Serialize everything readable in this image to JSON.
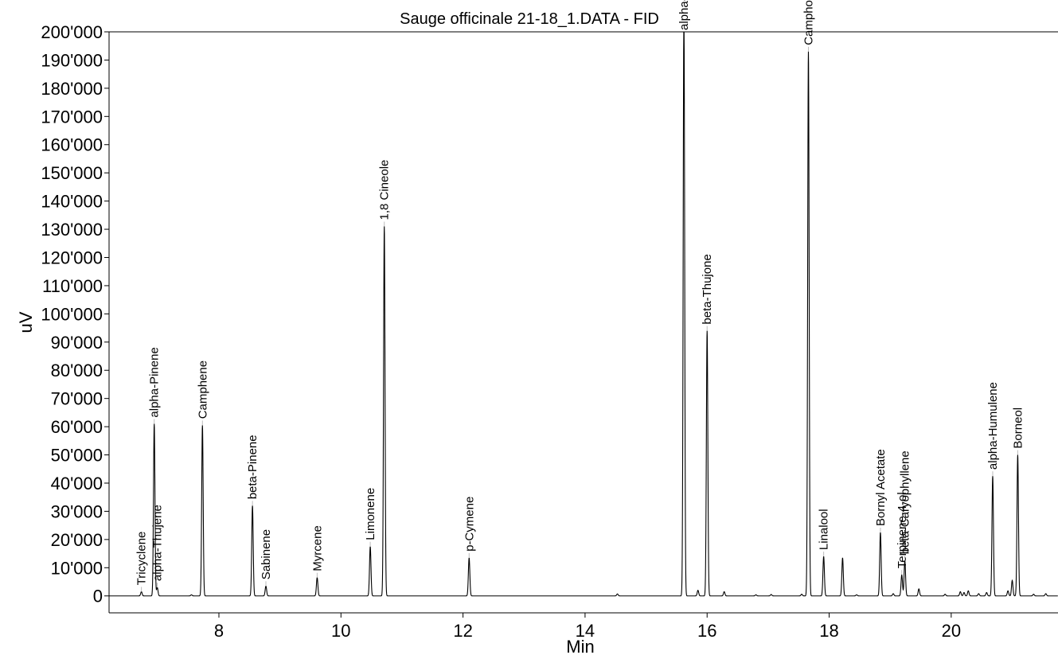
{
  "chart_data": {
    "type": "line",
    "title": "Sauge officinale 21-18_1.DATA - FID",
    "xlabel": "Min",
    "ylabel": "uV",
    "xlim": [
      6.2,
      21.75
    ],
    "ylim": [
      -6000,
      200000
    ],
    "x_ticks": [
      8,
      10,
      12,
      14,
      16,
      18,
      20
    ],
    "x_tick_labels": [
      "8",
      "10",
      "12",
      "14",
      "16",
      "18",
      "20"
    ],
    "y_ticks": [
      0,
      10000,
      20000,
      30000,
      40000,
      50000,
      60000,
      70000,
      80000,
      90000,
      100000,
      110000,
      120000,
      130000,
      140000,
      150000,
      160000,
      170000,
      180000,
      190000,
      200000
    ],
    "y_tick_labels": [
      "0",
      "10'000",
      "20'000",
      "30'000",
      "40'000",
      "50'000",
      "60'000",
      "70'000",
      "80'000",
      "90'000",
      "100'000",
      "110'000",
      "120'000",
      "130'000",
      "140'000",
      "150'000",
      "160'000",
      "170'000",
      "180'000",
      "190'000",
      "200'000"
    ],
    "grid": false,
    "trace_color": "#000000",
    "labeled_peaks": [
      {
        "name": "Tricyclene",
        "x": 6.73,
        "y": 1500
      },
      {
        "name": "alpha-Pinene",
        "x": 6.94,
        "y": 61000
      },
      {
        "name": "alpha-Thujene",
        "x": 6.99,
        "y": 3000
      },
      {
        "name": "Camphene",
        "x": 7.73,
        "y": 60500
      },
      {
        "name": "beta-Pinene",
        "x": 8.55,
        "y": 32000
      },
      {
        "name": "Sabinene",
        "x": 8.77,
        "y": 3500
      },
      {
        "name": "Myrcene",
        "x": 9.61,
        "y": 6500
      },
      {
        "name": "Limonene",
        "x": 10.48,
        "y": 17500
      },
      {
        "name": "1,8 Cineole",
        "x": 10.71,
        "y": 131000
      },
      {
        "name": "p-Cymene",
        "x": 12.1,
        "y": 13500
      },
      {
        "name": "alpha-Thujone",
        "x": 15.62,
        "y": 210000
      },
      {
        "name": "beta-Thujone",
        "x": 16.0,
        "y": 94000
      },
      {
        "name": "Camphor",
        "x": 17.66,
        "y": 193000
      },
      {
        "name": "Linalool",
        "x": 17.91,
        "y": 14000
      },
      {
        "name": "Bornyl Acetate",
        "x": 18.84,
        "y": 22500
      },
      {
        "name": "Terpinene-4-ol",
        "x": 19.19,
        "y": 7500
      },
      {
        "name": "beta-Caryophyllene",
        "x": 19.24,
        "y": 12500
      },
      {
        "name": "alpha-Humulene",
        "x": 20.68,
        "y": 42500
      },
      {
        "name": "Borneol",
        "x": 21.09,
        "y": 50000
      }
    ],
    "minor_peaks": [
      {
        "x": 7.55,
        "y": 400
      },
      {
        "x": 14.53,
        "y": 700
      },
      {
        "x": 15.85,
        "y": 2000
      },
      {
        "x": 16.28,
        "y": 1500
      },
      {
        "x": 16.8,
        "y": 400
      },
      {
        "x": 17.05,
        "y": 500
      },
      {
        "x": 17.55,
        "y": 600
      },
      {
        "x": 18.22,
        "y": 13500
      },
      {
        "x": 18.45,
        "y": 400
      },
      {
        "x": 19.05,
        "y": 800
      },
      {
        "x": 19.47,
        "y": 2500
      },
      {
        "x": 19.9,
        "y": 600
      },
      {
        "x": 20.15,
        "y": 1500
      },
      {
        "x": 20.21,
        "y": 1200
      },
      {
        "x": 20.28,
        "y": 1800
      },
      {
        "x": 20.45,
        "y": 800
      },
      {
        "x": 20.58,
        "y": 1200
      },
      {
        "x": 20.93,
        "y": 1800
      },
      {
        "x": 21.0,
        "y": 5500
      },
      {
        "x": 21.35,
        "y": 600
      },
      {
        "x": 21.55,
        "y": 800
      }
    ]
  }
}
